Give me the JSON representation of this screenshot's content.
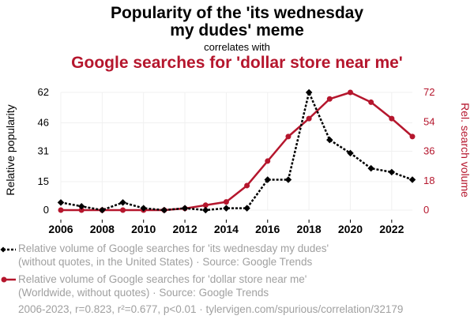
{
  "header": {
    "title_line1": "Popularity of the 'its wednesday",
    "title_line2": "my dudes' meme",
    "correlates": "correlates with",
    "title_red": "Google searches for 'dollar store near me'"
  },
  "colors": {
    "series1": "#000000",
    "series2": "#b5162d",
    "text_gray": "#a0a0a0",
    "grid": "#f0f0f0"
  },
  "chart_data": {
    "type": "line",
    "x": [
      2006,
      2007,
      2008,
      2009,
      2010,
      2011,
      2012,
      2013,
      2014,
      2015,
      2016,
      2017,
      2018,
      2019,
      2020,
      2021,
      2022,
      2023
    ],
    "series": [
      {
        "axis": "left",
        "values": [
          4,
          2,
          0,
          4,
          1,
          0,
          1,
          0,
          1,
          1,
          16,
          16,
          62,
          37,
          30,
          22,
          20,
          16
        ]
      },
      {
        "axis": "right",
        "values": [
          0,
          0,
          0,
          0,
          0,
          0,
          1,
          3,
          5,
          15,
          30,
          45,
          56,
          68,
          72,
          66,
          56,
          45
        ]
      }
    ],
    "ylabel_left": "Relative popularity",
    "ylabel_right": "Rel. search volume",
    "yticks_left": [
      0,
      15,
      31,
      46,
      62
    ],
    "yticks_right": [
      0,
      18,
      36,
      54,
      72
    ],
    "ylim_left": [
      0,
      62
    ],
    "ylim_right": [
      0,
      72
    ],
    "xticks": [
      2006,
      2008,
      2010,
      2012,
      2014,
      2016,
      2018,
      2020,
      2022
    ],
    "xlim": [
      2006,
      2023
    ],
    "grid": true
  },
  "legend": {
    "item1_line1": "Relative volume of Google searches for 'its wednesday my dudes'",
    "item1_line2": "(without quotes, in the United States) · Source: Google Trends",
    "item2_line1": "Relative volume of Google searches for 'dollar store near me'",
    "item2_line2": "(Worldwide, without quotes) · Source: Google Trends"
  },
  "footer": "2006-2023, r=0.823, r²=0.677, p<0.01 · tylervigen.com/spurious/correlation/32179"
}
